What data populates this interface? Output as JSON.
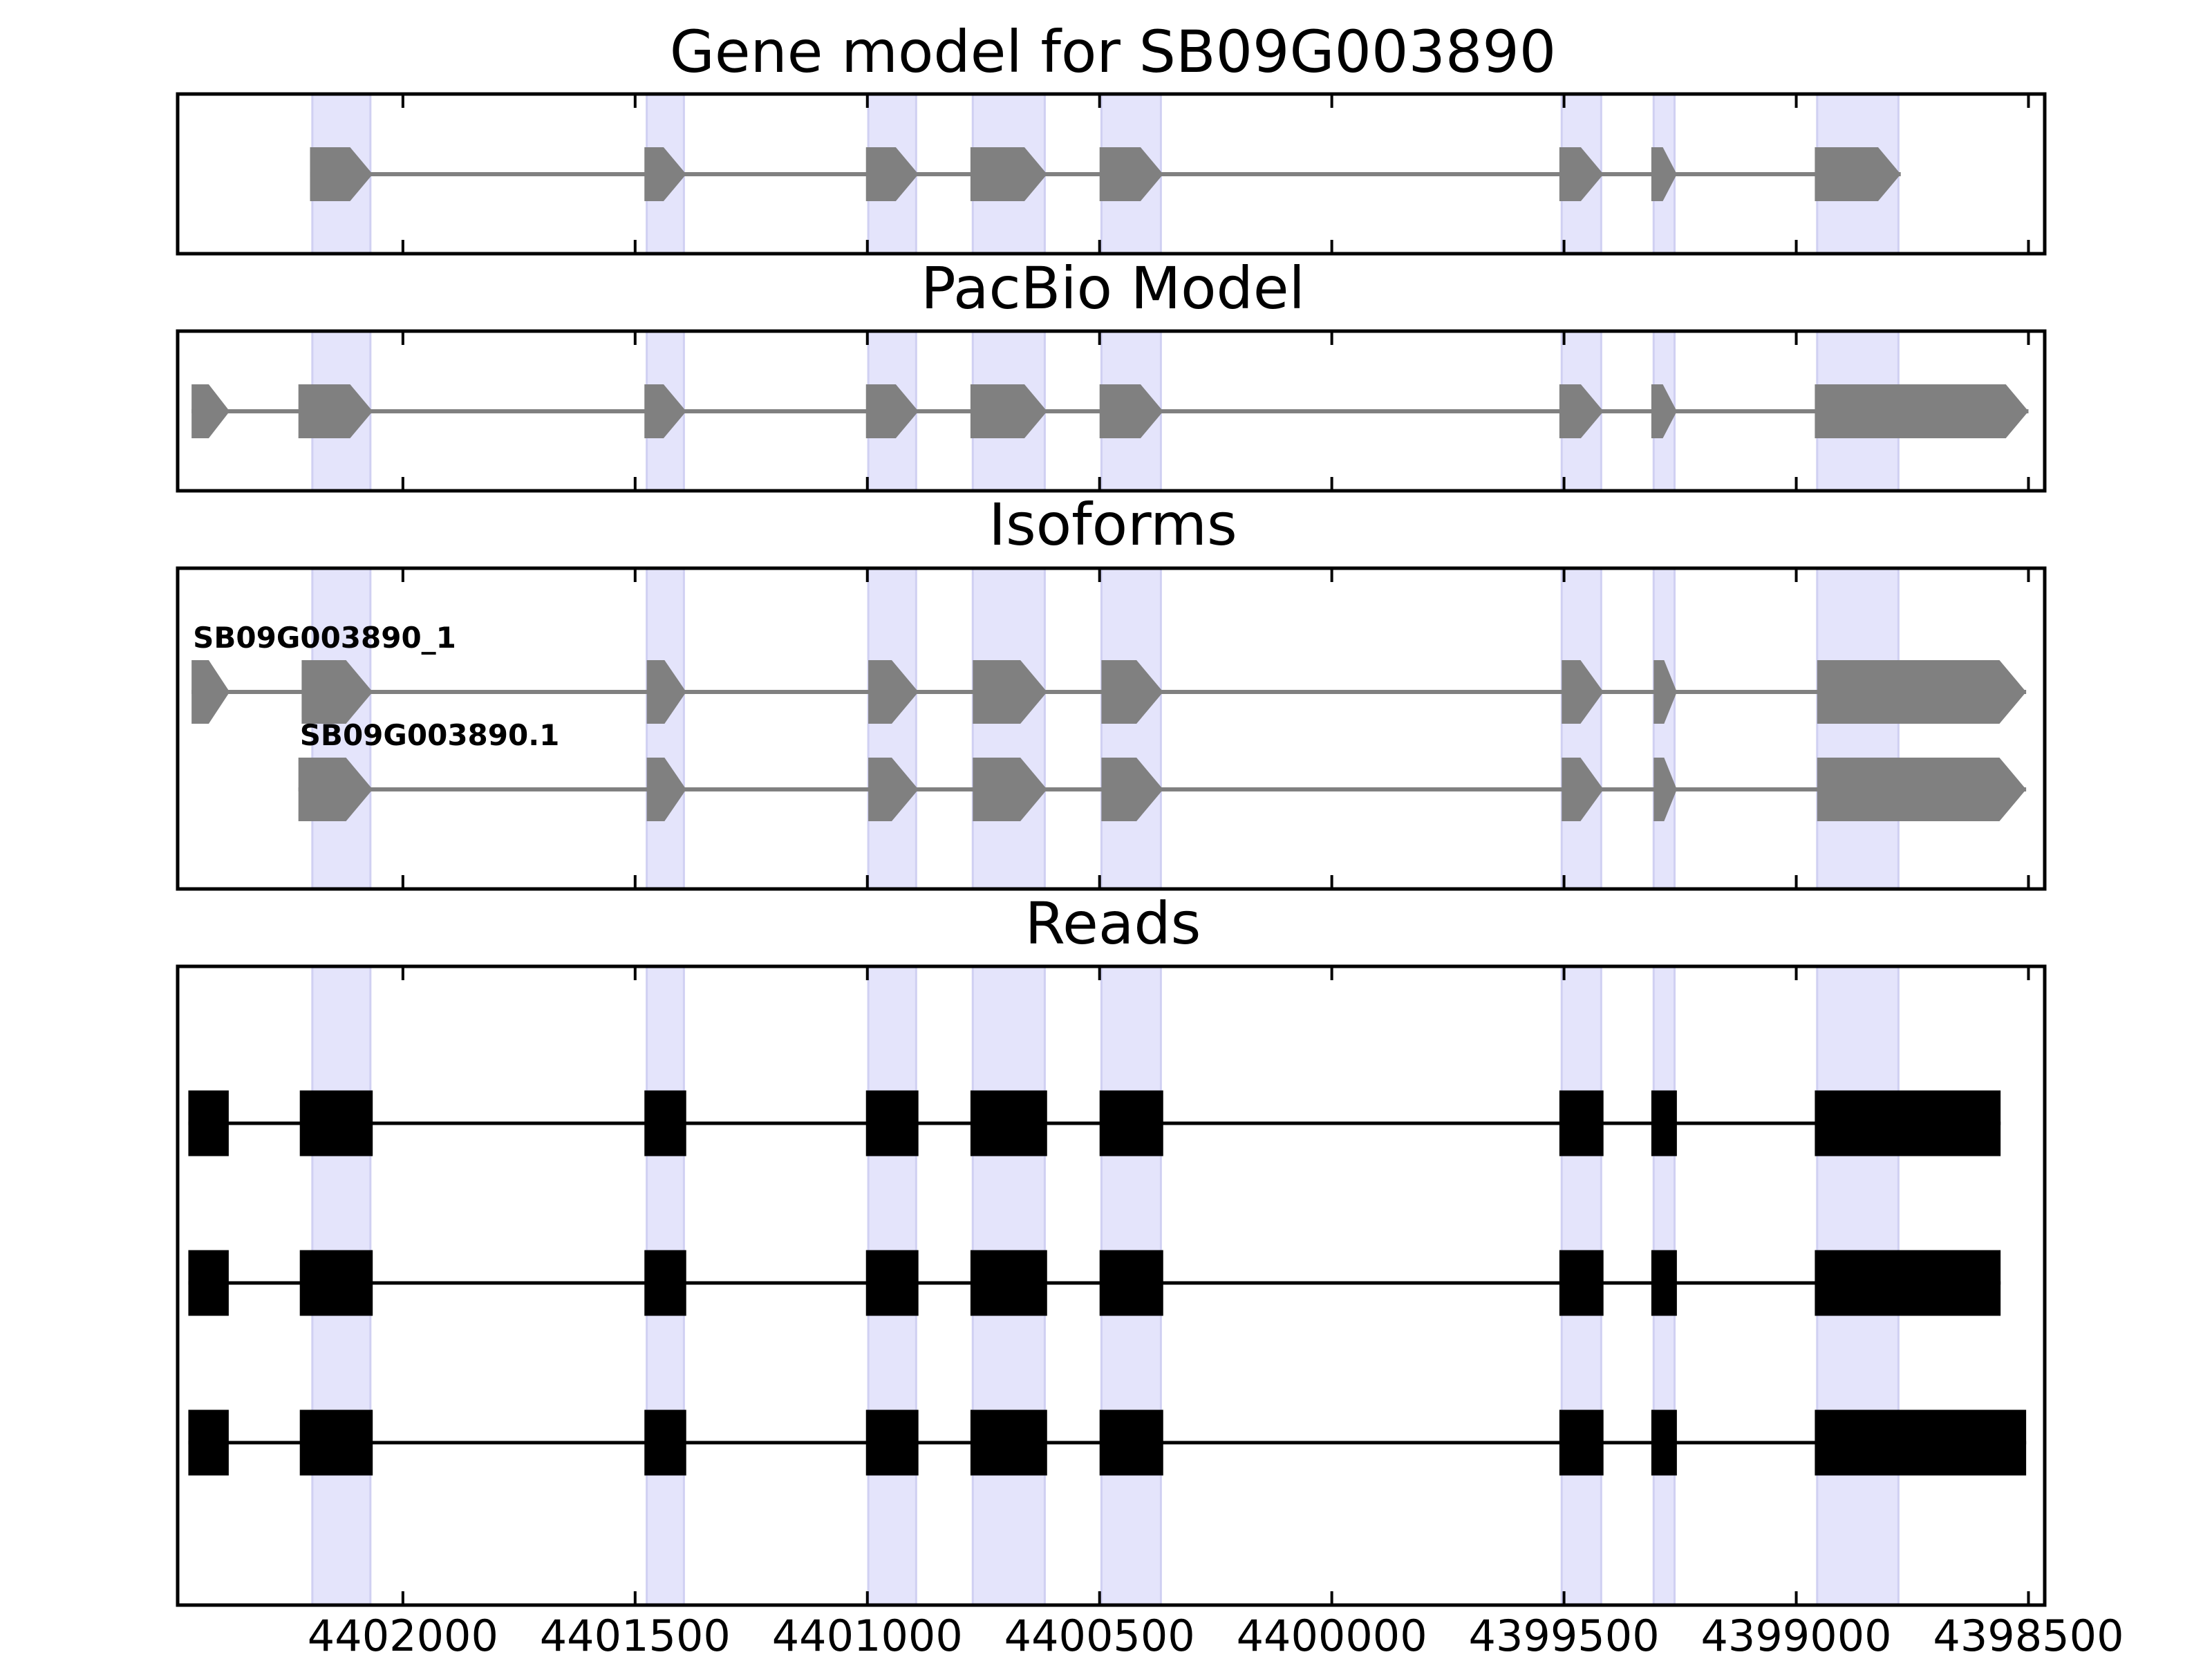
{
  "chart_data": {
    "type": "gene-structure",
    "xaxis": {
      "reversed": true,
      "range": [
        4402485,
        4398465
      ],
      "ticks": [
        4402000,
        4401500,
        4401000,
        4400500,
        4400000,
        4399500,
        4399000,
        4398500
      ],
      "tick_labels": [
        "4402000",
        "4401500",
        "4401000",
        "4400500",
        "4400000",
        "4399500",
        "4399000",
        "4398500"
      ]
    },
    "exon_highlight_regions": [
      [
        4402195,
        4402070
      ],
      [
        4401475,
        4401395
      ],
      [
        4400998,
        4400895
      ],
      [
        4400773,
        4400618
      ],
      [
        4400496,
        4400368
      ],
      [
        4399505,
        4399420
      ],
      [
        4399307,
        4399262
      ],
      [
        4398955,
        4398780
      ]
    ],
    "colors": {
      "highlight": "#e4e4fb",
      "highlight_edge": "#d0d0f2",
      "model": "#808080",
      "reads": "#000000",
      "frame": "#000000"
    },
    "panels": [
      {
        "title": "Gene model for SB09G003890",
        "tracks": [
          {
            "label": "",
            "exons": [
              [
                4402200,
                4402065
              ],
              [
                4401480,
                4401390
              ],
              [
                4401003,
                4400890
              ],
              [
                4400778,
                4400613
              ],
              [
                4400500,
                4400363
              ],
              [
                4399510,
                4399415
              ],
              [
                4399312,
                4399257
              ],
              [
                4398960,
                4398775
              ]
            ]
          }
        ]
      },
      {
        "title": "PacBio Model",
        "tracks": [
          {
            "label": "",
            "exons": [
              [
                4402455,
                4402373
              ],
              [
                4402225,
                4402065
              ],
              [
                4401480,
                4401390
              ],
              [
                4401003,
                4400890
              ],
              [
                4400778,
                4400613
              ],
              [
                4400500,
                4400363
              ],
              [
                4399510,
                4399415
              ],
              [
                4399312,
                4399257
              ],
              [
                4398960,
                4398500
              ]
            ]
          }
        ]
      },
      {
        "title": "Isoforms",
        "tracks": [
          {
            "label": "SB09G003890_1",
            "exons": [
              [
                4402455,
                4402373
              ],
              [
                4402218,
                4402065
              ],
              [
                4401475,
                4401390
              ],
              [
                4400998,
                4400890
              ],
              [
                4400773,
                4400613
              ],
              [
                4400496,
                4400363
              ],
              [
                4399505,
                4399415
              ],
              [
                4399307,
                4399257
              ],
              [
                4398955,
                4398505
              ]
            ]
          },
          {
            "label": "SB09G003890.1",
            "exons": [
              [
                4402225,
                4402065
              ],
              [
                4401475,
                4401390
              ],
              [
                4400998,
                4400890
              ],
              [
                4400773,
                4400613
              ],
              [
                4400496,
                4400363
              ],
              [
                4399505,
                4399415
              ],
              [
                4399307,
                4399257
              ],
              [
                4398955,
                4398505
              ]
            ]
          }
        ]
      },
      {
        "title": "Reads",
        "tracks": [
          {
            "label": "",
            "exons": [
              [
                4402462,
                4402375
              ],
              [
                4402222,
                4402065
              ],
              [
                4401480,
                4401390
              ],
              [
                4401003,
                4400890
              ],
              [
                4400778,
                4400613
              ],
              [
                4400500,
                4400363
              ],
              [
                4399510,
                4399415
              ],
              [
                4399312,
                4399257
              ],
              [
                4398960,
                4398560
              ]
            ]
          },
          {
            "label": "",
            "exons": [
              [
                4402462,
                4402375
              ],
              [
                4402222,
                4402065
              ],
              [
                4401480,
                4401390
              ],
              [
                4401003,
                4400890
              ],
              [
                4400778,
                4400613
              ],
              [
                4400500,
                4400363
              ],
              [
                4399510,
                4399415
              ],
              [
                4399312,
                4399257
              ],
              [
                4398960,
                4398560
              ]
            ]
          },
          {
            "label": "",
            "exons": [
              [
                4402462,
                4402375
              ],
              [
                4402222,
                4402065
              ],
              [
                4401480,
                4401390
              ],
              [
                4401003,
                4400890
              ],
              [
                4400778,
                4400613
              ],
              [
                4400500,
                4400363
              ],
              [
                4399510,
                4399415
              ],
              [
                4399312,
                4399257
              ],
              [
                4398960,
                4398505
              ]
            ]
          }
        ]
      }
    ]
  }
}
